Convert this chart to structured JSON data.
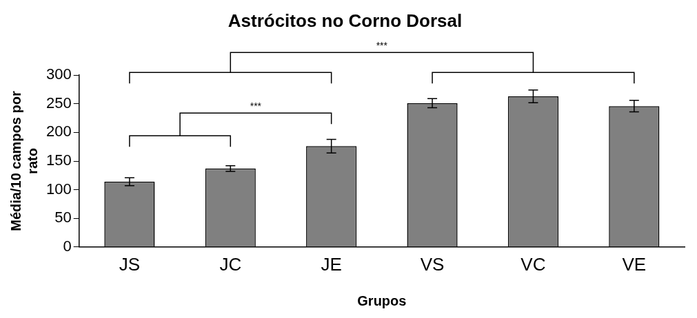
{
  "chart_data": {
    "type": "bar",
    "title": "Astrócitos no Corno Dorsal",
    "xlabel": "Grupos",
    "ylabel": "Média/10 campos por rato",
    "categories": [
      "JS",
      "JC",
      "JE",
      "VS",
      "VC",
      "VE"
    ],
    "values": [
      114,
      137,
      176,
      251,
      263,
      246
    ],
    "errors": [
      7,
      5,
      12,
      8,
      11,
      10
    ],
    "color": "#808080",
    "ylim": [
      0,
      300
    ],
    "yticks": [
      0,
      50,
      100,
      150,
      200,
      250,
      300
    ],
    "grid": false,
    "legend": false,
    "annotations": [
      "***",
      "***"
    ]
  }
}
